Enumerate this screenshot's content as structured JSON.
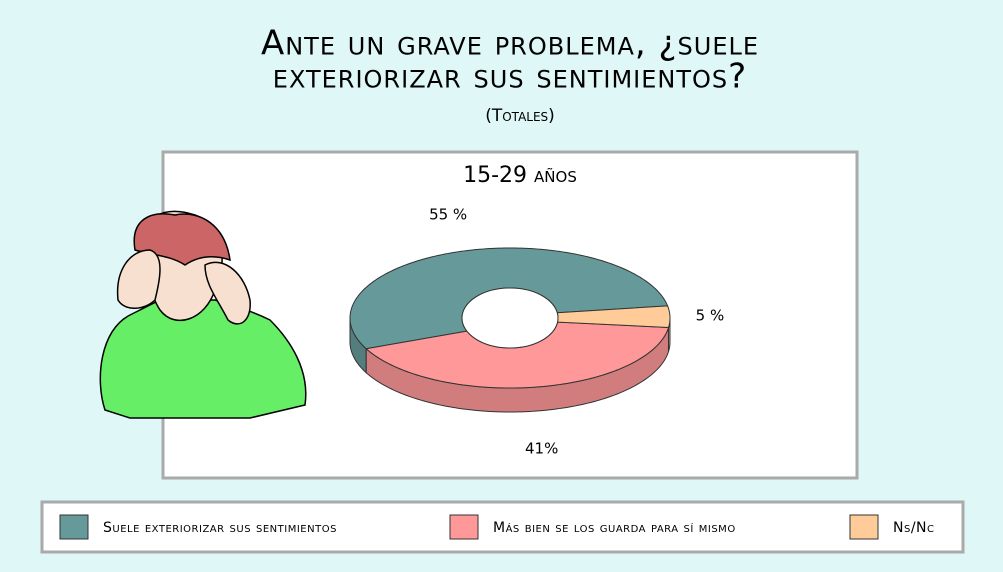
{
  "chart_data": {
    "type": "pie",
    "title": [
      "Ante un grave problema, ¿suele",
      "exteriorizar sus sentimientos?"
    ],
    "subtitle": "(Totales)",
    "chart_title": "15-29 años",
    "categories": [
      "Suele exteriorizar sus sentimientos",
      "Más bien se los guarda para sí mismo",
      "Ns/Nc"
    ],
    "values": [
      55,
      41,
      5
    ],
    "value_labels": [
      "55 %",
      "41%",
      "5 %"
    ],
    "colors": [
      "#669999",
      "#ff9999",
      "#ffcc99"
    ]
  }
}
